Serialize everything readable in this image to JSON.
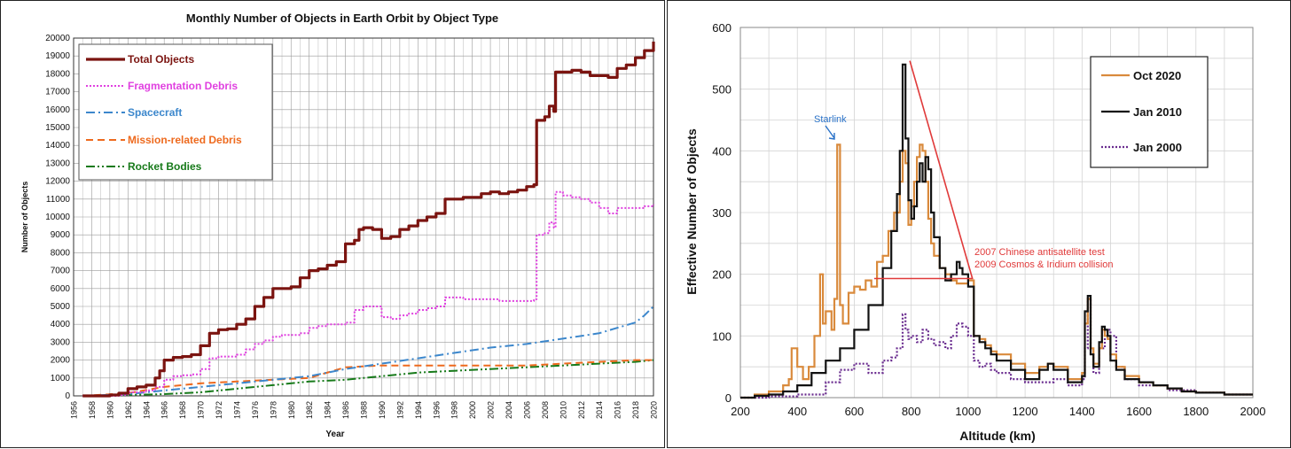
{
  "left_chart": {
    "title": "Monthly Number of Objects in Earth Orbit by Object Type",
    "xlabel": "Year",
    "ylabel": "Number of Objects",
    "legend": [
      "Total Objects",
      "Fragmentation Debris",
      "Spacecraft",
      "Mission-related Debris",
      "Rocket Bodies"
    ]
  },
  "right_chart": {
    "xlabel": "Altitude (km)",
    "ylabel": "Effective Number of Objects",
    "legend": [
      "Oct 2020",
      "Jan 2010",
      "Jan 2000"
    ],
    "annotations": {
      "starlink": "Starlink",
      "asat_line1": "2007 Chinese antisatellite test",
      "asat_line2": "2009 Cosmos & Iridium collision"
    }
  },
  "chart_data": [
    {
      "type": "line",
      "title": "Monthly Number of Objects in Earth Orbit by Object Type",
      "xlabel": "Year",
      "ylabel": "Number of Objects",
      "xlim": [
        1956,
        2020
      ],
      "ylim": [
        0,
        20000
      ],
      "x_ticks": [
        "1956",
        "1958",
        "1960",
        "1962",
        "1964",
        "1966",
        "1968",
        "1970",
        "1972",
        "1974",
        "1976",
        "1978",
        "1980",
        "1982",
        "1984",
        "1986",
        "1988",
        "1990",
        "1992",
        "1994",
        "1996",
        "1998",
        "2000",
        "2002",
        "2004",
        "2006",
        "2008",
        "2010",
        "2012",
        "2014",
        "2016",
        "2018",
        "2020"
      ],
      "y_ticks": [
        "0",
        "1000",
        "2000",
        "3000",
        "4000",
        "5000",
        "6000",
        "7000",
        "8000",
        "9000",
        "10000",
        "11000",
        "12000",
        "13000",
        "14000",
        "15000",
        "16000",
        "17000",
        "18000",
        "19000",
        "20000"
      ],
      "grid": true,
      "legend_position": "top-left",
      "series": [
        {
          "name": "Total Objects",
          "color": "#7b1410",
          "style": "solid",
          "x": [
            1957,
            1960,
            1961,
            1962,
            1963,
            1964,
            1965,
            1965.5,
            1966,
            1967,
            1968,
            1969,
            1970,
            1971,
            1972,
            1973,
            1974,
            1975,
            1976,
            1977,
            1978,
            1979,
            1980,
            1981,
            1982,
            1983,
            1984,
            1985,
            1986,
            1987,
            1987.5,
            1988,
            1989,
            1990,
            1991,
            1992,
            1993,
            1994,
            1995,
            1996,
            1997,
            1998,
            1999,
            2000,
            2001,
            2002,
            2003,
            2004,
            2005,
            2006,
            2006.8,
            2007.1,
            2008,
            2008.5,
            2009,
            2009.2,
            2010,
            2011,
            2012,
            2013,
            2014,
            2015,
            2016,
            2017,
            2018,
            2019,
            2020
          ],
          "y": [
            0,
            50,
            150,
            400,
            500,
            600,
            1000,
            1400,
            2000,
            2150,
            2200,
            2300,
            2800,
            3500,
            3700,
            3750,
            4000,
            4300,
            5000,
            5500,
            6000,
            6000,
            6100,
            6600,
            7000,
            7100,
            7300,
            7500,
            8500,
            8700,
            9300,
            9400,
            9300,
            8800,
            8900,
            9300,
            9500,
            9800,
            10000,
            10200,
            11000,
            11000,
            11100,
            11100,
            11300,
            11400,
            11300,
            11400,
            11500,
            11700,
            11800,
            15400,
            15600,
            16200,
            15900,
            18100,
            18100,
            18200,
            18100,
            17900,
            17900,
            17800,
            18300,
            18500,
            18900,
            19300,
            19800
          ]
        },
        {
          "name": "Fragmentation Debris",
          "color": "#e040e0",
          "style": "dotted",
          "x": [
            1957,
            1961,
            1962,
            1964,
            1965,
            1966,
            1967,
            1968,
            1969,
            1970,
            1971,
            1972,
            1973,
            1974,
            1975,
            1976,
            1977,
            1978,
            1979,
            1980,
            1981,
            1982,
            1983,
            1984,
            1985,
            1986,
            1987,
            1988,
            1989,
            1990,
            1991,
            1992,
            1993,
            1994,
            1995,
            1996,
            1997,
            1998,
            1999,
            2000,
            2001,
            2002,
            2003,
            2004,
            2005,
            2006,
            2006.8,
            2007.1,
            2008,
            2008.5,
            2009,
            2009.2,
            2010,
            2011,
            2012,
            2013,
            2014,
            2015,
            2016,
            2017,
            2018,
            2019,
            2020
          ],
          "y": [
            0,
            50,
            200,
            300,
            500,
            900,
            1100,
            1150,
            1200,
            1500,
            2100,
            2200,
            2200,
            2300,
            2600,
            2900,
            3100,
            3300,
            3400,
            3400,
            3500,
            3800,
            3900,
            4000,
            4000,
            4100,
            4800,
            5000,
            5000,
            4400,
            4300,
            4500,
            4600,
            4800,
            4900,
            5000,
            5500,
            5500,
            5400,
            5400,
            5400,
            5400,
            5300,
            5300,
            5300,
            5300,
            5400,
            9000,
            9100,
            9700,
            9400,
            11400,
            11200,
            11100,
            11000,
            10800,
            10500,
            10200,
            10500,
            10500,
            10500,
            10600,
            10700
          ]
        },
        {
          "name": "Spacecraft",
          "color": "#3c87cc",
          "style": "dashdot",
          "x": [
            1957,
            1962,
            1966,
            1970,
            1974,
            1978,
            1982,
            1986,
            1990,
            1994,
            1998,
            2002,
            2006,
            2010,
            2014,
            2016,
            2018,
            2019,
            2020
          ],
          "y": [
            0,
            100,
            300,
            500,
            700,
            900,
            1100,
            1500,
            1800,
            2100,
            2400,
            2700,
            2900,
            3200,
            3500,
            3800,
            4100,
            4500,
            5000
          ]
        },
        {
          "name": "Mission-related Debris",
          "color": "#ee6a1e",
          "style": "dashed",
          "x": [
            1957,
            1962,
            1966,
            1970,
            1974,
            1978,
            1982,
            1986,
            1990,
            1994,
            1998,
            2002,
            2006,
            2010,
            2014,
            2018,
            2020
          ],
          "y": [
            0,
            150,
            500,
            700,
            800,
            900,
            1000,
            1600,
            1700,
            1700,
            1700,
            1700,
            1700,
            1800,
            1900,
            2000,
            2000
          ]
        },
        {
          "name": "Rocket Bodies",
          "color": "#177a1a",
          "style": "dashdotdot",
          "x": [
            1957,
            1962,
            1966,
            1970,
            1974,
            1978,
            1982,
            1986,
            1990,
            1994,
            1998,
            2002,
            2006,
            2010,
            2014,
            2018,
            2020
          ],
          "y": [
            0,
            50,
            100,
            200,
            400,
            600,
            800,
            900,
            1100,
            1300,
            1400,
            1500,
            1600,
            1700,
            1800,
            1900,
            2000
          ]
        }
      ]
    },
    {
      "type": "line",
      "xlabel": "Altitude (km)",
      "ylabel": "Effective Number of Objects",
      "xlim": [
        200,
        2000
      ],
      "ylim": [
        0,
        600
      ],
      "x_ticks": [
        "200",
        "400",
        "600",
        "800",
        "1000",
        "1200",
        "1400",
        "1600",
        "1800",
        "2000"
      ],
      "y_ticks": [
        "0",
        "100",
        "200",
        "300",
        "400",
        "500",
        "600"
      ],
      "grid": true,
      "legend_position": "top-right",
      "annotations": [
        "Starlink",
        "2007 Chinese antisatellite test",
        "2009 Cosmos & Iridium collision"
      ],
      "series": [
        {
          "name": "Oct 2020",
          "color": "#d98a3c",
          "style": "solid",
          "x": [
            200,
            250,
            300,
            350,
            370,
            380,
            400,
            420,
            440,
            460,
            480,
            490,
            500,
            520,
            530,
            540,
            550,
            560,
            580,
            600,
            620,
            640,
            660,
            680,
            700,
            720,
            740,
            760,
            770,
            780,
            790,
            800,
            810,
            820,
            830,
            840,
            850,
            860,
            870,
            880,
            900,
            920,
            940,
            960,
            980,
            1000,
            1020,
            1040,
            1060,
            1080,
            1100,
            1150,
            1200,
            1250,
            1280,
            1300,
            1350,
            1400,
            1410,
            1420,
            1430,
            1440,
            1460,
            1470,
            1480,
            1490,
            1500,
            1520,
            1550,
            1600,
            1650,
            1700,
            1750,
            1800,
            1900,
            2000
          ],
          "y": [
            0,
            5,
            10,
            20,
            30,
            80,
            50,
            30,
            50,
            100,
            200,
            120,
            140,
            110,
            160,
            410,
            150,
            120,
            170,
            180,
            175,
            190,
            180,
            220,
            230,
            270,
            300,
            350,
            400,
            380,
            280,
            310,
            350,
            390,
            410,
            400,
            350,
            290,
            250,
            230,
            210,
            200,
            190,
            185,
            185,
            190,
            100,
            95,
            85,
            75,
            70,
            55,
            40,
            50,
            55,
            50,
            30,
            40,
            120,
            160,
            80,
            55,
            80,
            110,
            100,
            95,
            70,
            50,
            35,
            25,
            20,
            15,
            10,
            8,
            5,
            5
          ]
        },
        {
          "name": "Jan 2010",
          "color": "#111111",
          "style": "solid",
          "x": [
            200,
            250,
            300,
            350,
            400,
            450,
            500,
            550,
            600,
            650,
            700,
            730,
            750,
            760,
            770,
            780,
            790,
            800,
            810,
            820,
            830,
            840,
            850,
            860,
            870,
            880,
            900,
            920,
            940,
            960,
            970,
            980,
            1000,
            1020,
            1040,
            1060,
            1080,
            1100,
            1150,
            1200,
            1250,
            1280,
            1300,
            1350,
            1400,
            1410,
            1420,
            1430,
            1440,
            1460,
            1470,
            1480,
            1490,
            1500,
            1520,
            1550,
            1600,
            1650,
            1700,
            1750,
            1800,
            1900,
            2000
          ],
          "y": [
            0,
            3,
            5,
            10,
            20,
            40,
            60,
            80,
            110,
            150,
            210,
            270,
            330,
            400,
            540,
            420,
            320,
            290,
            310,
            350,
            380,
            350,
            390,
            370,
            300,
            260,
            210,
            190,
            200,
            220,
            210,
            200,
            180,
            100,
            90,
            80,
            70,
            60,
            45,
            30,
            45,
            55,
            45,
            25,
            35,
            140,
            165,
            70,
            50,
            90,
            115,
            110,
            100,
            60,
            45,
            30,
            25,
            20,
            15,
            10,
            8,
            5,
            5
          ]
        },
        {
          "name": "Jan 2000",
          "color": "#6a2c8f",
          "style": "dotted",
          "x": [
            200,
            300,
            400,
            500,
            550,
            600,
            650,
            700,
            730,
            750,
            770,
            780,
            790,
            800,
            820,
            840,
            860,
            880,
            900,
            920,
            940,
            960,
            980,
            1000,
            1020,
            1040,
            1060,
            1080,
            1100,
            1150,
            1200,
            1250,
            1300,
            1350,
            1400,
            1410,
            1420,
            1430,
            1440,
            1460,
            1480,
            1500,
            1520,
            1550,
            1600,
            1700,
            1800,
            1900,
            2000
          ],
          "y": [
            0,
            2,
            5,
            25,
            45,
            55,
            40,
            60,
            65,
            80,
            135,
            110,
            95,
            100,
            90,
            110,
            95,
            85,
            90,
            80,
            100,
            120,
            115,
            100,
            60,
            50,
            55,
            45,
            40,
            30,
            25,
            25,
            30,
            20,
            30,
            80,
            160,
            70,
            40,
            80,
            110,
            100,
            50,
            30,
            20,
            12,
            8,
            5,
            5
          ]
        }
      ]
    }
  ]
}
